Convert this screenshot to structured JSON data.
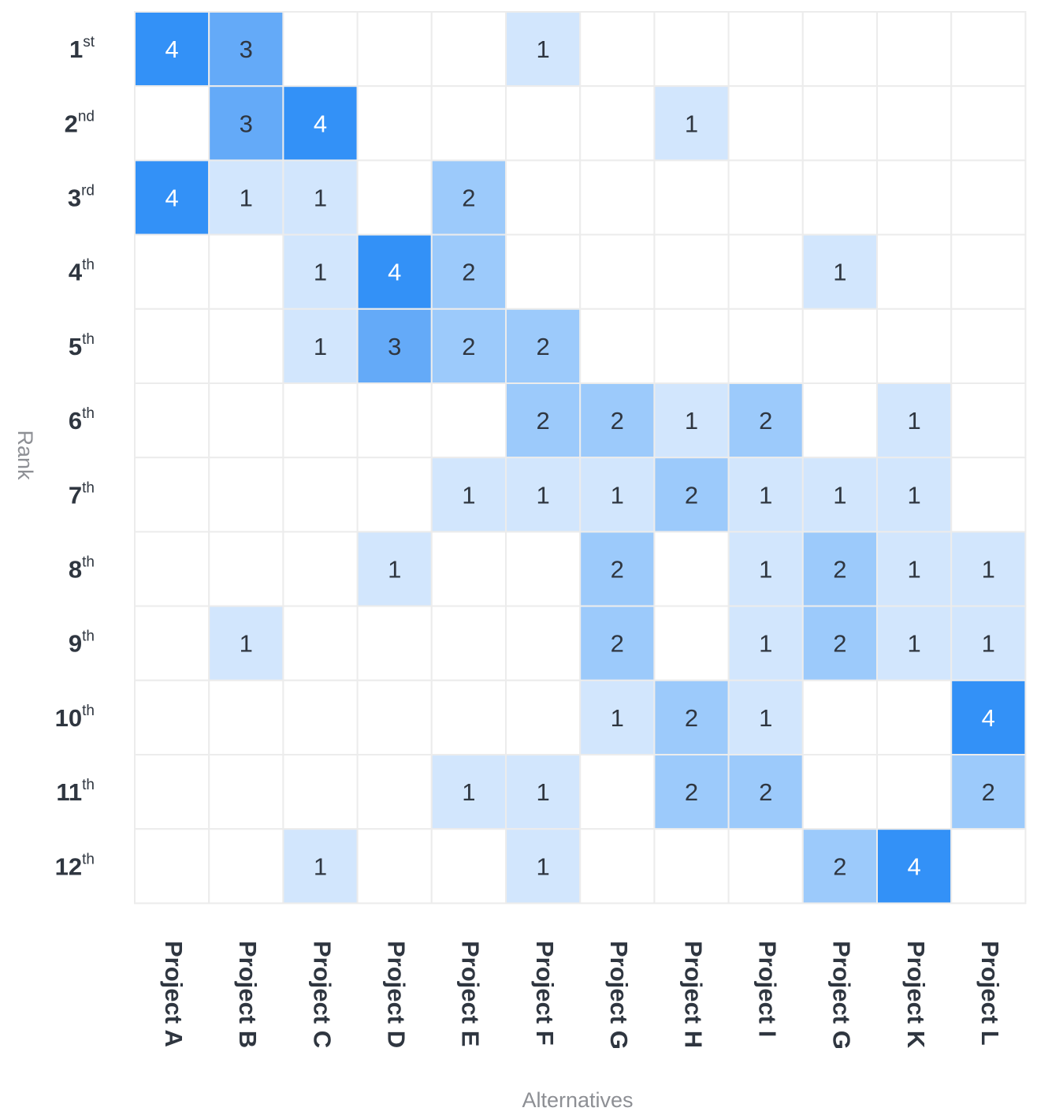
{
  "chart_data": {
    "type": "heatmap",
    "title": "",
    "xlabel": "Alternatives",
    "ylabel": "Rank",
    "columns": [
      "Project A",
      "Project B",
      "Project C",
      "Project D",
      "Project E",
      "Project F",
      "Project G",
      "Project H",
      "Project I",
      "Project G",
      "Project K",
      "Project L"
    ],
    "rows": [
      {
        "num": "1",
        "suffix": "st"
      },
      {
        "num": "2",
        "suffix": "nd"
      },
      {
        "num": "3",
        "suffix": "rd"
      },
      {
        "num": "4",
        "suffix": "th"
      },
      {
        "num": "5",
        "suffix": "th"
      },
      {
        "num": "6",
        "suffix": "th"
      },
      {
        "num": "7",
        "suffix": "th"
      },
      {
        "num": "8",
        "suffix": "th"
      },
      {
        "num": "9",
        "suffix": "th"
      },
      {
        "num": "10",
        "suffix": "th"
      },
      {
        "num": "11",
        "suffix": "th"
      },
      {
        "num": "12",
        "suffix": "th"
      }
    ],
    "values": [
      [
        4,
        3,
        null,
        null,
        null,
        1,
        null,
        null,
        null,
        null,
        null,
        null
      ],
      [
        null,
        3,
        4,
        null,
        null,
        null,
        null,
        1,
        null,
        null,
        null,
        null
      ],
      [
        4,
        1,
        1,
        null,
        2,
        null,
        null,
        null,
        null,
        null,
        null,
        null
      ],
      [
        null,
        null,
        1,
        4,
        2,
        null,
        null,
        null,
        null,
        1,
        null,
        null
      ],
      [
        null,
        null,
        1,
        3,
        2,
        2,
        null,
        null,
        null,
        null,
        null,
        null
      ],
      [
        null,
        null,
        null,
        null,
        null,
        2,
        2,
        1,
        2,
        null,
        1,
        null
      ],
      [
        null,
        null,
        null,
        null,
        1,
        1,
        1,
        2,
        1,
        1,
        1,
        null
      ],
      [
        null,
        null,
        null,
        1,
        null,
        null,
        2,
        null,
        1,
        2,
        1,
        1
      ],
      [
        null,
        1,
        null,
        null,
        null,
        null,
        2,
        null,
        1,
        2,
        1,
        1
      ],
      [
        null,
        null,
        null,
        null,
        null,
        null,
        1,
        2,
        1,
        null,
        null,
        4
      ],
      [
        null,
        null,
        null,
        null,
        1,
        1,
        null,
        2,
        2,
        null,
        null,
        2
      ],
      [
        null,
        null,
        1,
        null,
        null,
        1,
        null,
        null,
        null,
        2,
        4,
        null
      ]
    ],
    "colors": {
      "1": "#d2e6fd",
      "2": "#9ccafb",
      "3": "#64aaf8",
      "4": "#3391f7",
      "empty": "#ffffff",
      "grid": "#ececec",
      "text_dark": "#2f3640",
      "text_light": "#ffffff"
    },
    "grid": true
  }
}
